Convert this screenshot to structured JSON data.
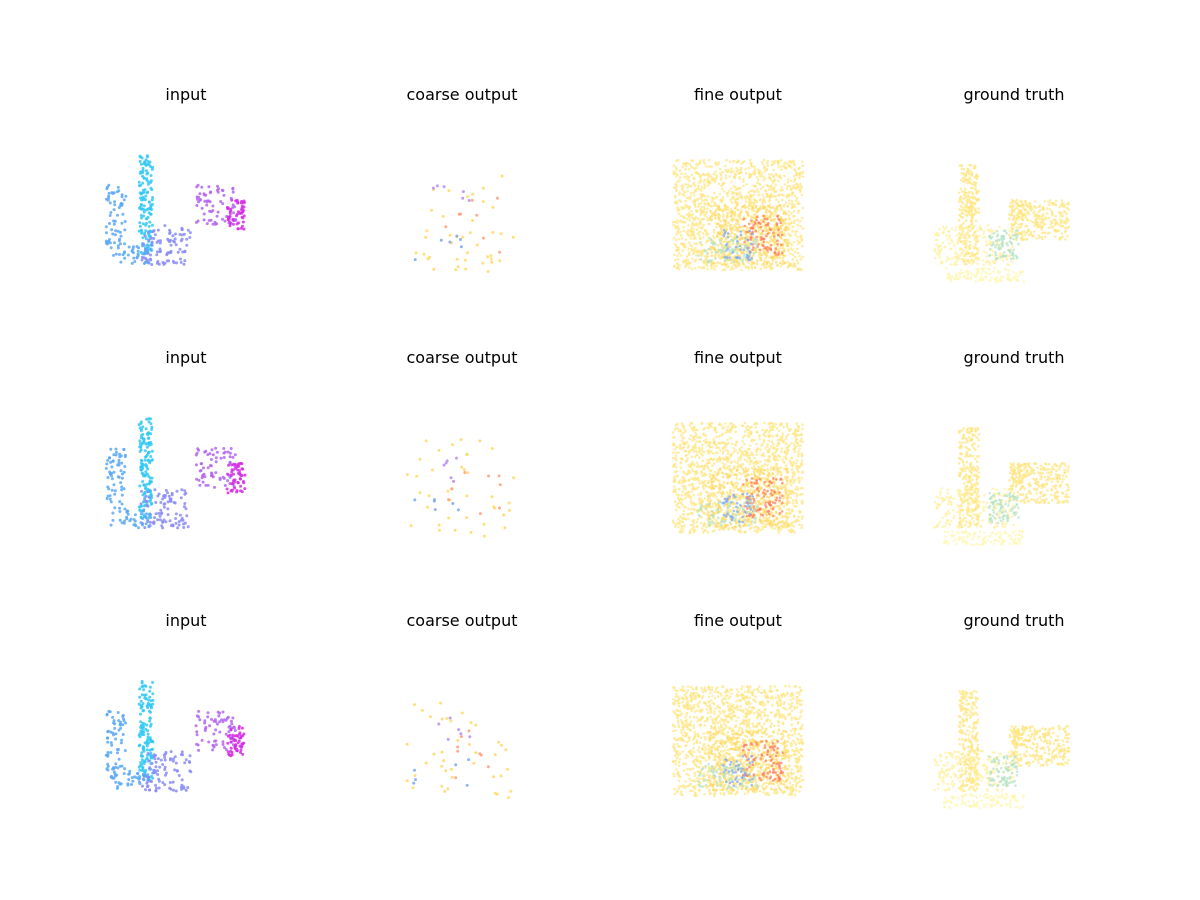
{
  "figure": {
    "columns": [
      "input",
      "coarse output",
      "fine output",
      "ground truth"
    ],
    "rows": 3
  },
  "chart_data": [
    {
      "type": "scatter",
      "row": 1,
      "title": "input",
      "palette": [
        "#33c9f5",
        "#5aa8f6",
        "#8a8cf5",
        "#b366ee",
        "#d62ae6"
      ],
      "density": "sparse-object"
    },
    {
      "type": "scatter",
      "row": 1,
      "title": "coarse output",
      "palette": [
        "#ffd966",
        "#ff9f7a",
        "#b48ef0",
        "#7aa7f5"
      ],
      "density": "very-sparse"
    },
    {
      "type": "scatter",
      "row": 1,
      "title": "fine output",
      "palette": [
        "#ffe680",
        "#ffd966",
        "#ff7a5c",
        "#b3e3c8",
        "#7aa7f5"
      ],
      "density": "dense"
    },
    {
      "type": "scatter",
      "row": 1,
      "title": "ground truth",
      "palette": [
        "#ffe680",
        "#ffef9e",
        "#b3e3c8",
        "#fff6b3"
      ],
      "density": "dense-structured"
    },
    {
      "type": "scatter",
      "row": 2,
      "title": "input",
      "palette": [
        "#33c9f5",
        "#5aa8f6",
        "#8a8cf5",
        "#b366ee",
        "#d62ae6"
      ],
      "density": "sparse-object"
    },
    {
      "type": "scatter",
      "row": 2,
      "title": "coarse output",
      "palette": [
        "#ffd966",
        "#ff9f7a",
        "#b48ef0",
        "#7aa7f5"
      ],
      "density": "very-sparse"
    },
    {
      "type": "scatter",
      "row": 2,
      "title": "fine output",
      "palette": [
        "#ffe680",
        "#ffd966",
        "#ff7a5c",
        "#b3e3c8",
        "#7aa7f5"
      ],
      "density": "dense"
    },
    {
      "type": "scatter",
      "row": 2,
      "title": "ground truth",
      "palette": [
        "#ffe680",
        "#ffef9e",
        "#b3e3c8",
        "#fff6b3"
      ],
      "density": "dense-structured"
    },
    {
      "type": "scatter",
      "row": 3,
      "title": "input",
      "palette": [
        "#33c9f5",
        "#5aa8f6",
        "#8a8cf5",
        "#b366ee",
        "#d62ae6"
      ],
      "density": "sparse-object"
    },
    {
      "type": "scatter",
      "row": 3,
      "title": "coarse output",
      "palette": [
        "#ffd966",
        "#ff9f7a",
        "#b48ef0",
        "#7aa7f5"
      ],
      "density": "very-sparse"
    },
    {
      "type": "scatter",
      "row": 3,
      "title": "fine output",
      "palette": [
        "#ffe680",
        "#ffd966",
        "#ff7a5c",
        "#b3e3c8",
        "#7aa7f5"
      ],
      "density": "dense"
    },
    {
      "type": "scatter",
      "row": 3,
      "title": "ground truth",
      "palette": [
        "#ffe680",
        "#ffef9e",
        "#b3e3c8",
        "#fff6b3"
      ],
      "density": "dense-structured"
    }
  ]
}
